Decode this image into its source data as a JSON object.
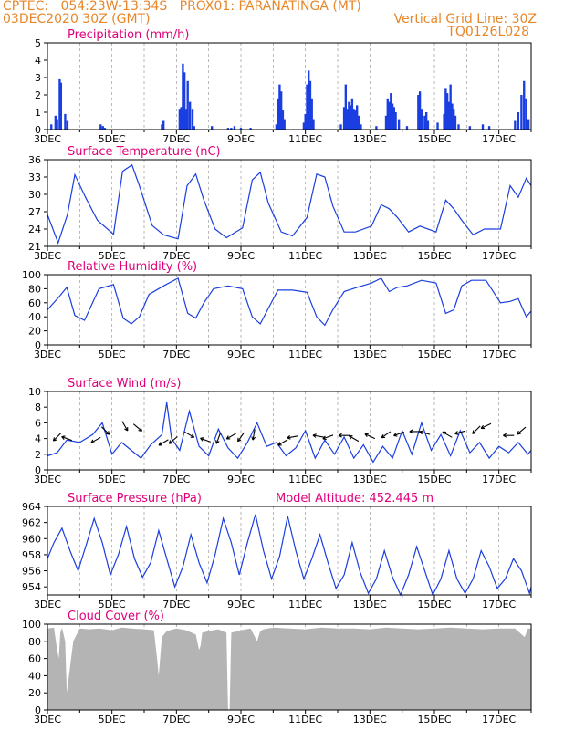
{
  "header": {
    "line1_left": "CPTEC:   054:23W-13:34S   PROX01: PARANATINGA (MT)",
    "line2_left": "03DEC2020 30Z (GMT)",
    "line2_right": "Vertical Grid Line: 30Z",
    "line3_right": "TQ0126L028"
  },
  "colors": {
    "header": "#e8862a",
    "panel_title": "#e0007a",
    "series": "#1a3ee0",
    "cloud_fill": "#b4b4b4",
    "axis": "#000000"
  },
  "x_ticks": [
    "3DEC",
    "5DEC",
    "7DEC",
    "9DEC",
    "11DEC",
    "13DEC",
    "15DEC",
    "17DEC"
  ],
  "x_range_days": [
    3.0,
    18.0
  ],
  "chart_data": [
    {
      "type": "bar",
      "title": "Precipitation  (mm/h)",
      "ylim": [
        0,
        5
      ],
      "yticks": [
        0,
        1,
        2,
        3,
        4,
        5
      ],
      "x": [
        3.12,
        3.25,
        3.3,
        3.38,
        3.42,
        3.55,
        3.62,
        4.65,
        4.72,
        4.78,
        6.55,
        6.6,
        7.1,
        7.15,
        7.2,
        7.25,
        7.3,
        7.35,
        7.42,
        7.5,
        7.55,
        8.1,
        8.6,
        8.7,
        8.8,
        9.0,
        9.3,
        10.1,
        10.15,
        10.2,
        10.25,
        10.3,
        10.35,
        10.95,
        11.0,
        11.05,
        11.1,
        11.15,
        11.2,
        11.25,
        12.1,
        12.2,
        12.25,
        12.3,
        12.35,
        12.4,
        12.45,
        12.5,
        12.55,
        12.6,
        12.65,
        12.72,
        13.2,
        13.5,
        13.55,
        13.6,
        13.65,
        13.7,
        13.75,
        13.8,
        13.9,
        14.15,
        14.5,
        14.55,
        14.6,
        14.7,
        14.75,
        14.8,
        15.1,
        15.3,
        15.35,
        15.4,
        15.45,
        15.5,
        15.55,
        15.6,
        15.65,
        15.75,
        16.1,
        16.5,
        16.7,
        17.5,
        17.6,
        17.7,
        17.78,
        17.85,
        17.92
      ],
      "values": [
        0.3,
        0.8,
        0.6,
        2.9,
        2.7,
        0.9,
        0.5,
        0.3,
        0.2,
        0.1,
        0.3,
        0.5,
        1.2,
        1.3,
        3.8,
        3.3,
        1.2,
        2.8,
        1.6,
        1.2,
        0.2,
        0.2,
        0.1,
        0.1,
        0.2,
        0.1,
        0.1,
        0.3,
        1.8,
        2.6,
        2.2,
        1.1,
        0.6,
        0.4,
        0.9,
        2.6,
        3.4,
        2.8,
        1.8,
        0.6,
        0.3,
        1.3,
        2.6,
        1.2,
        1.6,
        1.4,
        1.8,
        1.2,
        1.1,
        1.4,
        0.8,
        0.3,
        0.2,
        0.8,
        1.8,
        1.6,
        2.1,
        1.5,
        1.3,
        1.0,
        0.6,
        0.2,
        2.0,
        2.2,
        1.2,
        0.8,
        1.0,
        0.5,
        0.4,
        0.9,
        2.4,
        2.1,
        1.6,
        2.6,
        1.5,
        1.2,
        0.8,
        0.3,
        0.2,
        0.3,
        0.2,
        0.5,
        1.0,
        2.0,
        2.8,
        1.8,
        0.6
      ]
    },
    {
      "type": "line",
      "title": "Surface Temperature (nC)",
      "ylim": [
        21,
        36
      ],
      "yticks": [
        21,
        24,
        27,
        30,
        33,
        36
      ],
      "x": [
        3.0,
        3.33,
        3.62,
        3.85,
        4.18,
        4.55,
        5.05,
        5.33,
        5.62,
        5.85,
        6.25,
        6.6,
        7.05,
        7.33,
        7.6,
        7.85,
        8.2,
        8.55,
        9.05,
        9.35,
        9.6,
        9.85,
        10.25,
        10.6,
        11.05,
        11.35,
        11.6,
        11.85,
        12.2,
        12.55,
        13.05,
        13.35,
        13.6,
        13.85,
        14.2,
        14.55,
        15.05,
        15.35,
        15.6,
        15.85,
        16.2,
        16.55,
        17.05,
        17.35,
        17.6,
        17.85,
        18.0
      ],
      "values": [
        26.5,
        21.6,
        26.5,
        33.4,
        29.5,
        25.5,
        23.1,
        34.0,
        35.1,
        31.5,
        24.6,
        23.0,
        22.3,
        31.5,
        33.5,
        29.0,
        24.0,
        22.5,
        24.2,
        32.5,
        33.8,
        28.5,
        23.5,
        22.8,
        26.0,
        33.5,
        33.0,
        28.0,
        23.5,
        23.5,
        24.5,
        28.2,
        27.5,
        26.0,
        23.5,
        24.5,
        23.5,
        29.0,
        27.5,
        25.5,
        23.0,
        24.0,
        24.0,
        31.5,
        29.5,
        32.8,
        31.5
      ]
    },
    {
      "type": "line",
      "title": "Relative Humidity (%)",
      "ylim": [
        0,
        100
      ],
      "yticks": [
        0,
        20,
        40,
        60,
        80,
        100
      ],
      "x": [
        3.0,
        3.35,
        3.6,
        3.85,
        4.15,
        4.6,
        5.05,
        5.35,
        5.6,
        5.85,
        6.15,
        6.6,
        7.05,
        7.35,
        7.6,
        7.85,
        8.15,
        8.6,
        9.05,
        9.35,
        9.6,
        9.85,
        10.15,
        10.6,
        11.05,
        11.35,
        11.6,
        11.85,
        12.2,
        12.6,
        13.05,
        13.35,
        13.6,
        13.85,
        14.15,
        14.6,
        15.05,
        15.35,
        15.6,
        15.85,
        16.15,
        16.6,
        17.05,
        17.35,
        17.6,
        17.85,
        18.0
      ],
      "values": [
        50,
        68,
        82,
        42,
        35,
        80,
        86,
        38,
        30,
        40,
        72,
        84,
        95,
        45,
        38,
        60,
        80,
        84,
        80,
        40,
        30,
        52,
        78,
        78,
        75,
        40,
        28,
        50,
        76,
        82,
        88,
        95,
        76,
        82,
        84,
        92,
        88,
        45,
        50,
        84,
        92,
        92,
        60,
        62,
        66,
        40,
        48
      ]
    },
    {
      "type": "line",
      "title": "Surface Wind (m/s)",
      "ylim": [
        0,
        10
      ],
      "yticks": [
        0,
        2,
        4,
        6,
        8,
        10
      ],
      "x": [
        3.0,
        3.3,
        3.6,
        4.0,
        4.4,
        4.7,
        5.0,
        5.3,
        5.6,
        5.9,
        6.2,
        6.55,
        6.7,
        6.85,
        7.1,
        7.4,
        7.7,
        8.0,
        8.3,
        8.6,
        8.9,
        9.2,
        9.5,
        9.8,
        10.1,
        10.4,
        10.7,
        11.0,
        11.3,
        11.6,
        11.9,
        12.2,
        12.5,
        12.8,
        13.1,
        13.4,
        13.7,
        14.0,
        14.3,
        14.6,
        14.9,
        15.2,
        15.5,
        15.8,
        16.1,
        16.4,
        16.7,
        17.0,
        17.3,
        17.6,
        17.9,
        18.0
      ],
      "values": [
        1.8,
        2.2,
        3.8,
        3.5,
        4.5,
        6.0,
        2.0,
        3.5,
        2.5,
        1.5,
        3.2,
        4.5,
        8.6,
        4.0,
        2.5,
        7.5,
        3.0,
        1.8,
        5.2,
        2.8,
        1.5,
        3.5,
        6.0,
        3.0,
        3.5,
        1.8,
        2.8,
        5.0,
        1.5,
        3.8,
        2.0,
        4.2,
        1.5,
        3.2,
        1.0,
        3.0,
        1.5,
        5.0,
        2.0,
        6.0,
        2.5,
        4.5,
        1.8,
        5.0,
        2.2,
        3.5,
        1.5,
        3.0,
        2.2,
        3.5,
        2.0,
        2.5
      ]
    },
    {
      "type": "line",
      "title": "Surface Pressure (hPa)",
      "annotation": "Model Altitude: 452.445 m",
      "ylim": [
        953,
        964
      ],
      "yticks": [
        954,
        956,
        958,
        960,
        962,
        964
      ],
      "x": [
        3.0,
        3.2,
        3.45,
        3.7,
        3.95,
        4.2,
        4.45,
        4.7,
        4.95,
        5.2,
        5.45,
        5.7,
        5.95,
        6.2,
        6.45,
        6.7,
        6.95,
        7.2,
        7.45,
        7.7,
        7.95,
        8.2,
        8.45,
        8.7,
        8.95,
        9.2,
        9.45,
        9.7,
        9.95,
        10.2,
        10.45,
        10.7,
        10.95,
        11.2,
        11.45,
        11.7,
        11.95,
        12.2,
        12.45,
        12.7,
        12.95,
        13.2,
        13.45,
        13.7,
        13.95,
        14.2,
        14.45,
        14.7,
        14.95,
        15.2,
        15.45,
        15.7,
        15.95,
        16.2,
        16.45,
        16.7,
        16.95,
        17.2,
        17.45,
        17.7,
        17.95,
        18.0
      ],
      "values": [
        957.5,
        959.5,
        961.3,
        958.5,
        956.0,
        959.2,
        962.5,
        959.5,
        955.5,
        958.0,
        961.5,
        957.5,
        955.2,
        957.0,
        961.0,
        957.5,
        954.0,
        956.5,
        960.5,
        957.0,
        954.5,
        958.0,
        962.5,
        959.5,
        955.5,
        959.5,
        963.0,
        958.5,
        955.0,
        957.8,
        962.8,
        958.5,
        955.0,
        957.5,
        960.5,
        957.0,
        953.8,
        955.5,
        959.5,
        955.8,
        953.2,
        955.0,
        958.5,
        955.2,
        952.9,
        955.5,
        959.0,
        956.0,
        953.0,
        955.0,
        958.5,
        955.0,
        953.2,
        955.0,
        958.5,
        956.5,
        953.8,
        955.0,
        957.5,
        956.0,
        953.2,
        954.0
      ]
    },
    {
      "type": "area",
      "title": "Cloud Cover (%)",
      "ylim": [
        0,
        100
      ],
      "yticks": [
        0,
        20,
        40,
        60,
        80,
        100
      ],
      "x": [
        3.0,
        3.2,
        3.3,
        3.35,
        3.4,
        3.45,
        3.55,
        3.6,
        3.8,
        4.0,
        4.3,
        4.6,
        5.0,
        5.3,
        5.6,
        6.0,
        6.3,
        6.4,
        6.45,
        6.55,
        6.7,
        7.0,
        7.3,
        7.6,
        7.7,
        7.75,
        7.8,
        8.0,
        8.3,
        8.55,
        8.6,
        8.65,
        8.7,
        9.0,
        9.3,
        9.5,
        9.6,
        9.7,
        10.0,
        10.5,
        11.0,
        11.5,
        12.0,
        12.5,
        13.0,
        13.5,
        14.0,
        14.5,
        15.0,
        15.5,
        16.0,
        16.5,
        17.0,
        17.5,
        17.8,
        17.9,
        18.0
      ],
      "values": [
        95,
        96,
        70,
        60,
        90,
        96,
        80,
        20,
        80,
        95,
        94,
        95,
        93,
        96,
        95,
        94,
        93,
        60,
        40,
        85,
        92,
        95,
        93,
        88,
        70,
        75,
        90,
        92,
        94,
        90,
        0,
        0,
        90,
        93,
        95,
        80,
        92,
        94,
        96,
        95,
        94,
        96,
        95,
        95,
        94,
        96,
        95,
        94,
        95,
        96,
        95,
        94,
        95,
        95,
        85,
        95,
        95
      ]
    },
    {
      "type": "scatter",
      "title": "Surface Wind (m/s) direction arrows",
      "x": [
        3.3,
        3.6,
        4.5,
        4.8,
        5.4,
        5.8,
        6.6,
        6.9,
        7.4,
        7.9,
        8.3,
        8.7,
        9.0,
        9.4,
        10.3,
        10.6,
        11.4,
        11.7,
        12.2,
        12.5,
        13.0,
        13.5,
        13.9,
        14.4,
        14.7,
        15.4,
        15.8,
        16.3,
        16.6,
        17.3,
        17.7
      ],
      "values": [
        4.2,
        4.0,
        3.8,
        5.0,
        5.6,
        5.4,
        3.5,
        3.8,
        4.5,
        3.8,
        4.0,
        4.3,
        4.2,
        4.5,
        3.5,
        4.2,
        4.3,
        4.2,
        4.4,
        4.0,
        4.3,
        4.5,
        4.6,
        4.9,
        4.7,
        4.5,
        4.8,
        5.1,
        5.6,
        4.4,
        5.0
      ],
      "direction_deg": [
        225,
        160,
        210,
        315,
        300,
        320,
        210,
        220,
        330,
        160,
        250,
        210,
        235,
        260,
        210,
        190,
        170,
        200,
        180,
        150,
        155,
        215,
        200,
        180,
        165,
        150,
        195,
        225,
        205,
        180,
        220
      ]
    }
  ]
}
